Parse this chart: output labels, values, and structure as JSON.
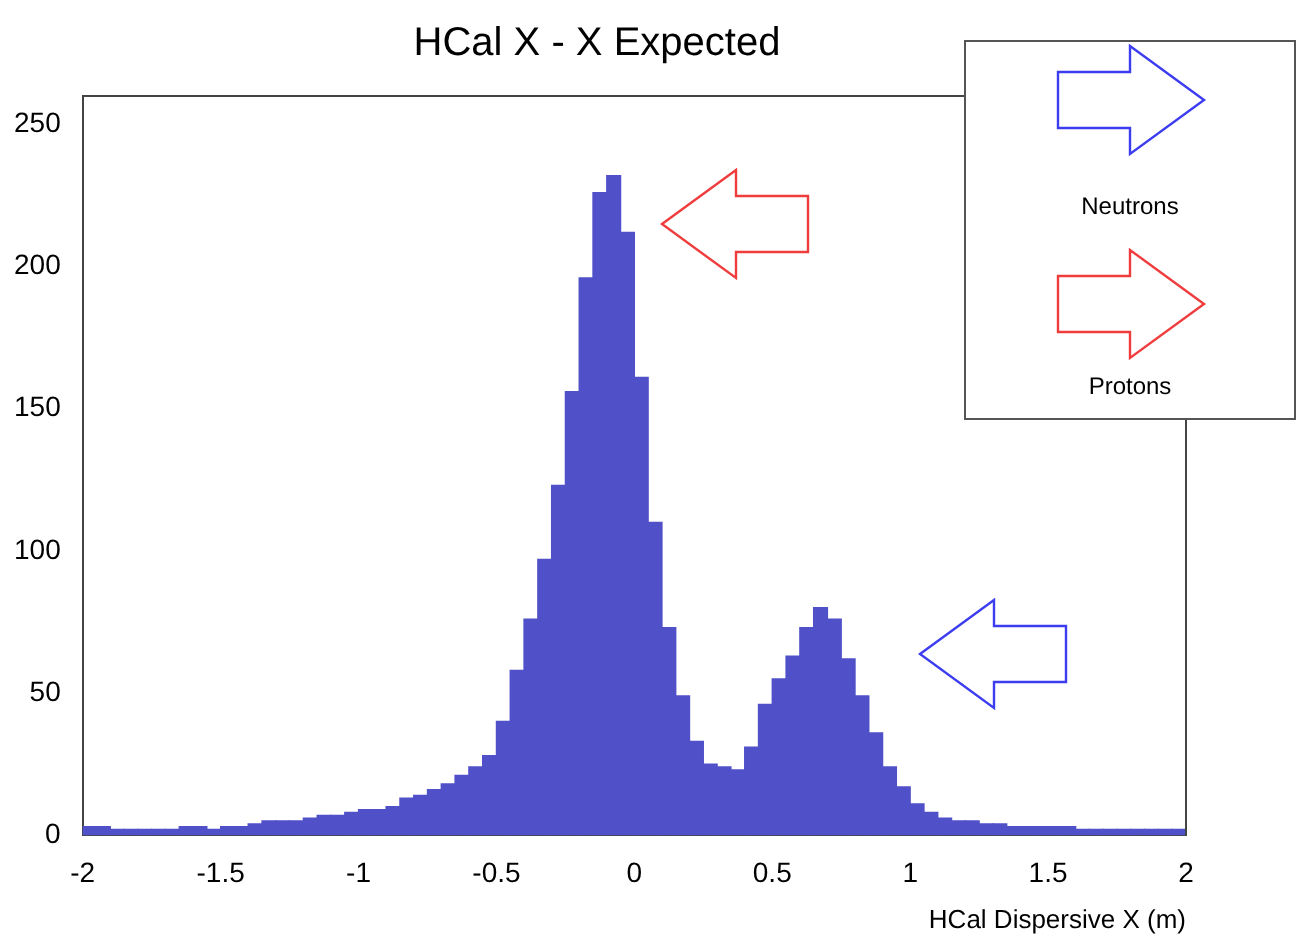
{
  "chart_data": {
    "type": "histogram",
    "title": "HCal X - X Expected",
    "xlabel": "HCal Dispersive X (m)",
    "annotations": [
      "Neutrons",
      "Protons"
    ],
    "color": "#5050c8",
    "bins": [
      -2,
      -1.95,
      -1.9,
      -1.85,
      -1.8,
      -1.75,
      -1.7,
      -1.65,
      -1.6,
      -1.55,
      -1.5,
      -1.45,
      -1.4,
      -1.35,
      -1.3,
      -1.25,
      -1.2,
      -1.15,
      -1.1,
      -1.05,
      -1,
      -0.95,
      -0.9,
      -0.85,
      -0.8,
      -0.75,
      -0.7,
      -0.65,
      -0.6,
      -0.55,
      -0.5,
      -0.45,
      -0.4,
      -0.35,
      -0.3,
      -0.25,
      -0.2,
      -0.15,
      -0.1,
      -0.05,
      0,
      0.05,
      0.1,
      0.15,
      0.2,
      0.25,
      0.3,
      0.35,
      0.4,
      0.45,
      0.5,
      0.55,
      0.6,
      0.65,
      0.7,
      0.75,
      0.8,
      0.85,
      0.9,
      0.95,
      1,
      1.05,
      1.1,
      1.15,
      1.2,
      1.25,
      1.3,
      1.35,
      1.4,
      1.45,
      1.5,
      1.55,
      1.6,
      1.65,
      1.7,
      1.75,
      1.8,
      1.85,
      1.9,
      1.95,
      2
    ],
    "values": [
      3,
      3,
      2,
      2,
      2,
      2,
      2,
      3,
      3,
      2,
      3,
      3,
      4,
      5,
      5,
      5,
      6,
      7,
      7,
      8,
      9,
      9,
      10,
      13,
      14,
      16,
      18,
      21,
      24,
      28,
      40,
      58,
      76,
      97,
      123,
      156,
      196,
      226,
      232,
      212,
      161,
      110,
      73,
      49,
      33,
      25,
      24,
      23,
      31,
      46,
      55,
      63,
      73,
      80,
      76,
      62,
      49,
      36,
      24,
      17,
      11,
      8,
      6,
      5,
      5,
      4,
      4,
      3,
      3,
      3,
      3,
      3,
      2,
      2,
      2,
      2,
      2,
      2,
      2,
      2
    ],
    "xlim": [
      -2,
      2
    ],
    "ylim": [
      0,
      260
    ],
    "xticks": [
      -2,
      -1.5,
      -1,
      -0.5,
      0,
      0.5,
      1,
      1.5,
      2
    ],
    "yticks": [
      0,
      50,
      100,
      150,
      200,
      250
    ]
  }
}
